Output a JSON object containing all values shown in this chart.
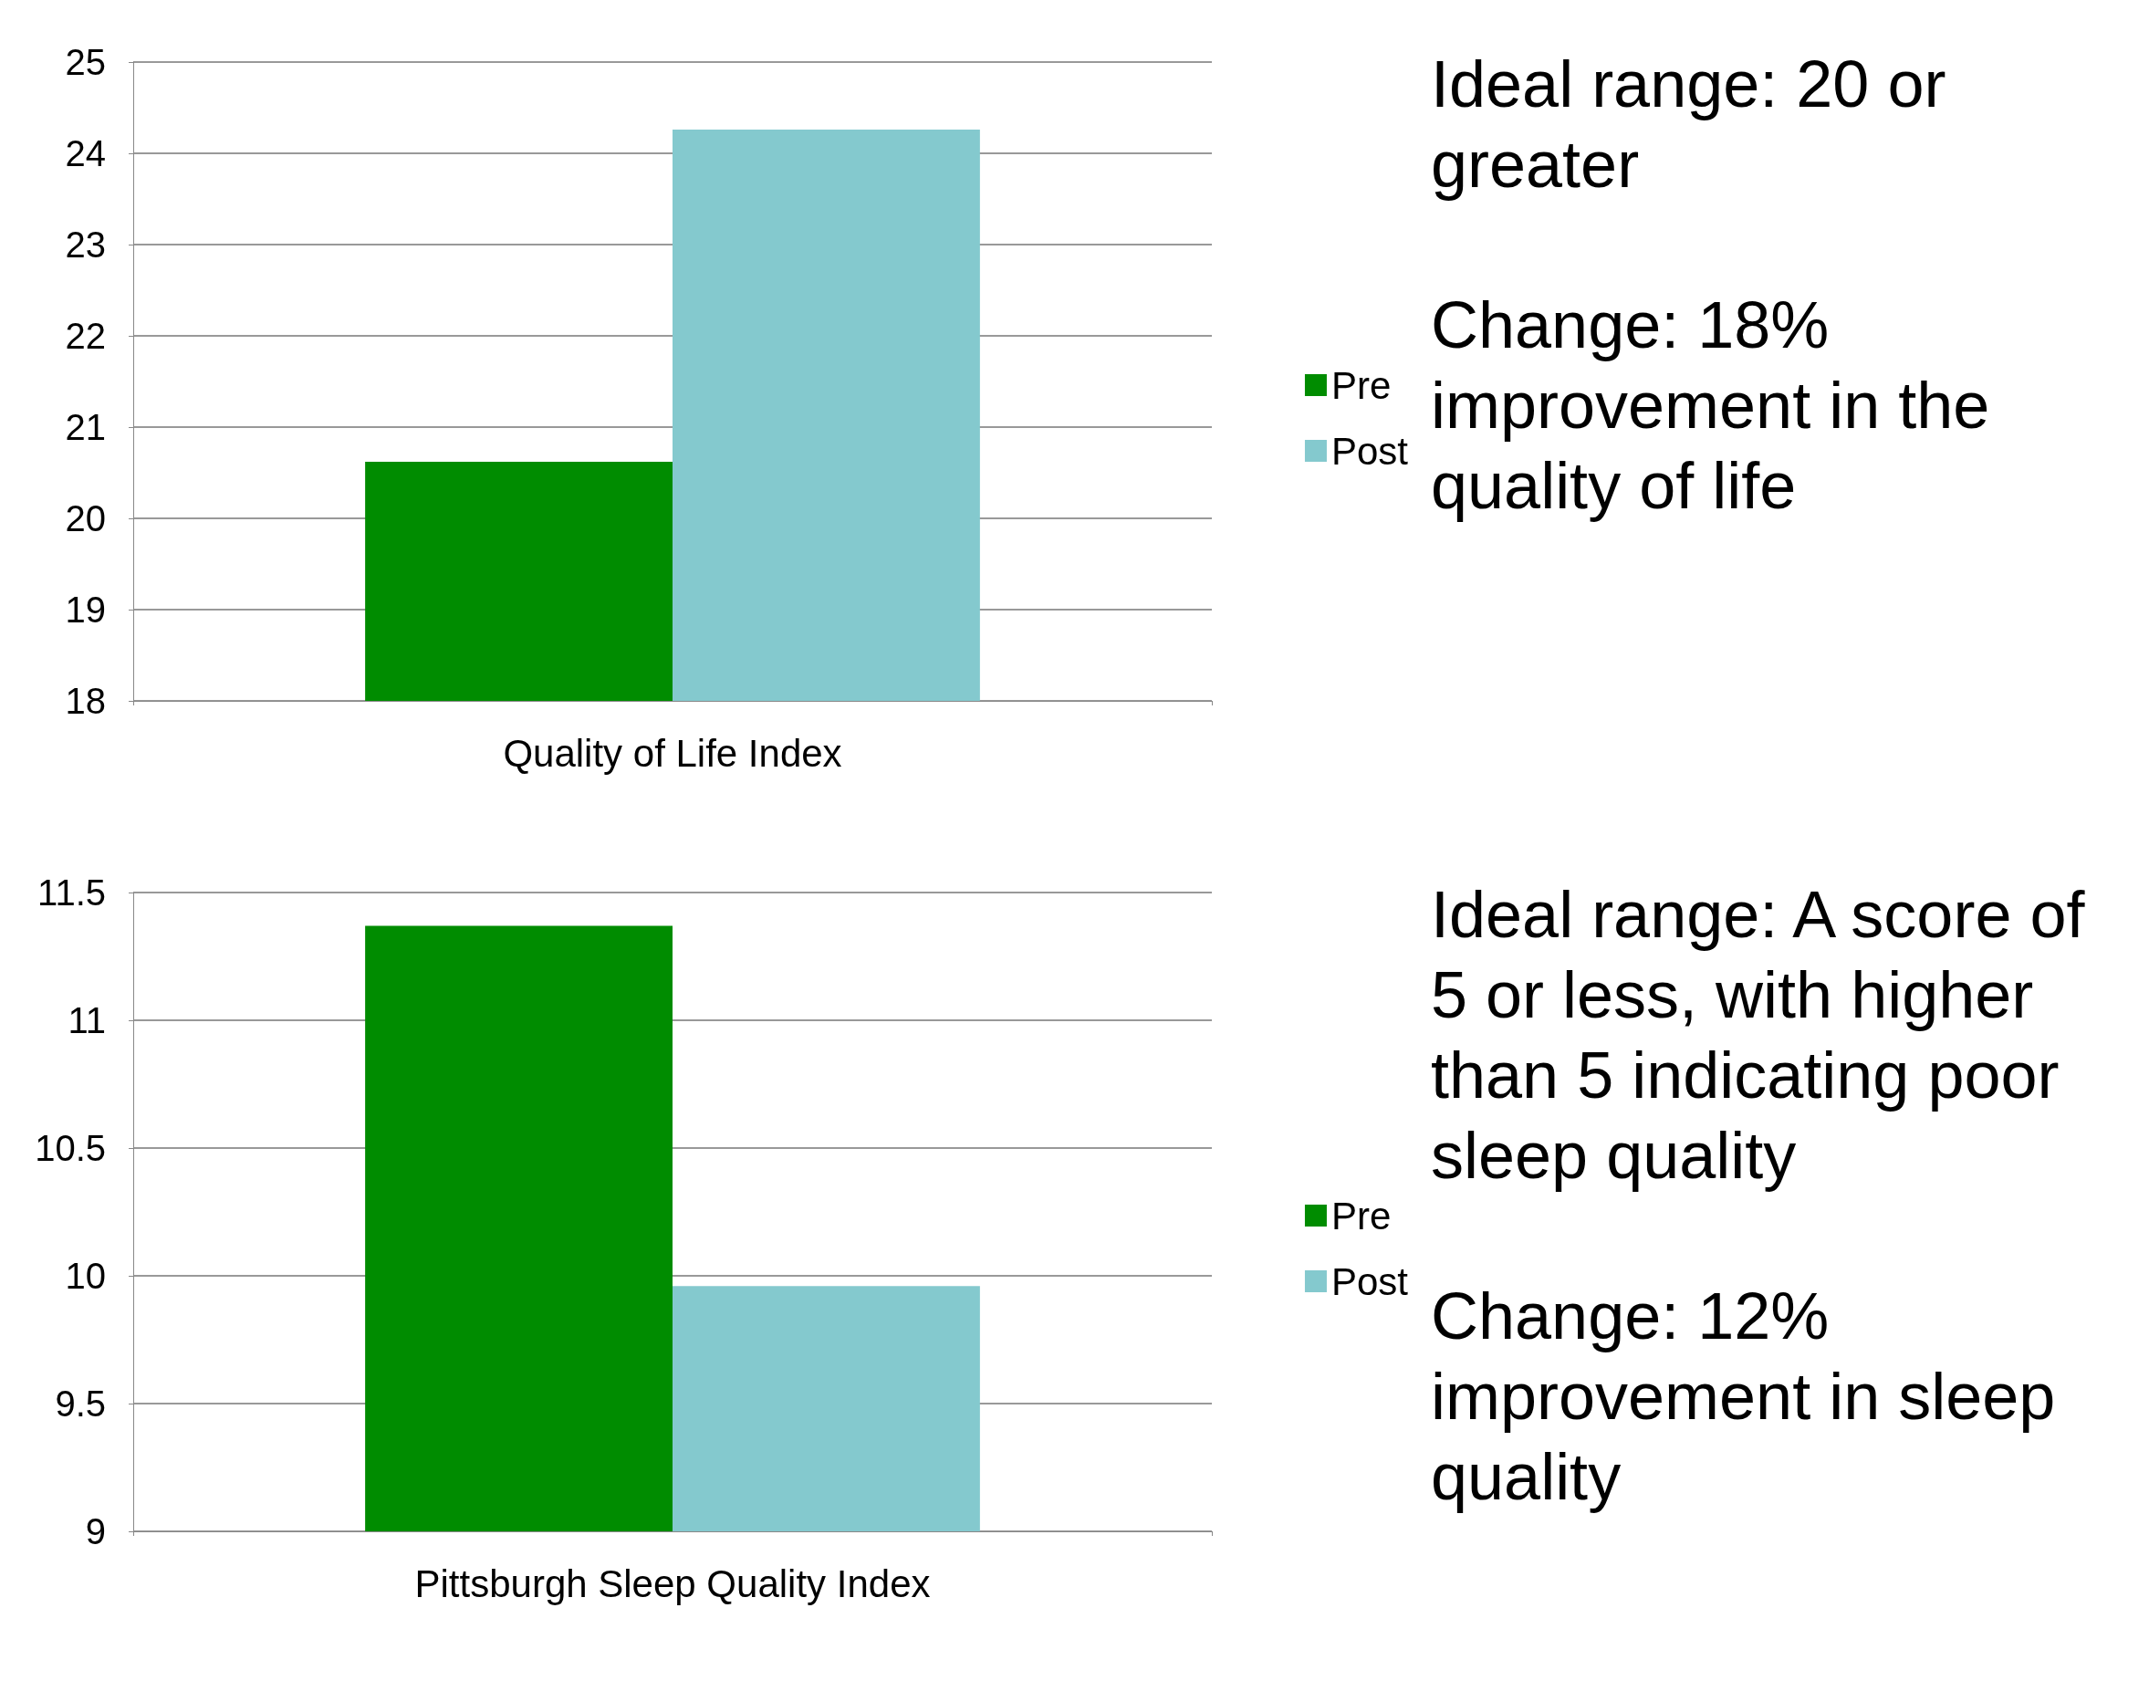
{
  "chart_data": [
    {
      "type": "bar",
      "categories": [
        "Quality of Life Index"
      ],
      "series": [
        {
          "name": "Pre",
          "color": "#008c00",
          "values": [
            20.62
          ]
        },
        {
          "name": "Post",
          "color": "#84c9ce",
          "values": [
            24.26
          ]
        }
      ],
      "ylim": [
        18,
        25
      ],
      "yticks": [
        18,
        19,
        20,
        21,
        22,
        23,
        24,
        25
      ],
      "grid": "y",
      "legend": "right",
      "annotations": [
        "Ideal range: 20 or greater",
        "Change: 18% improvement in the quality of life"
      ]
    },
    {
      "type": "bar",
      "categories": [
        "Pittsburgh Sleep Quality Index"
      ],
      "series": [
        {
          "name": "Pre",
          "color": "#008c00",
          "values": [
            11.37
          ]
        },
        {
          "name": "Post",
          "color": "#84c9ce",
          "values": [
            9.96
          ]
        }
      ],
      "ylim": [
        9,
        11.5
      ],
      "yticks": [
        9,
        9.5,
        10,
        10.5,
        11,
        11.5
      ],
      "grid": "y",
      "legend": "right",
      "annotations": [
        "Ideal range: A score of 5 or less, with higher than 5 indicating poor sleep quality",
        "Change: 12% improvement in sleep quality"
      ]
    }
  ]
}
